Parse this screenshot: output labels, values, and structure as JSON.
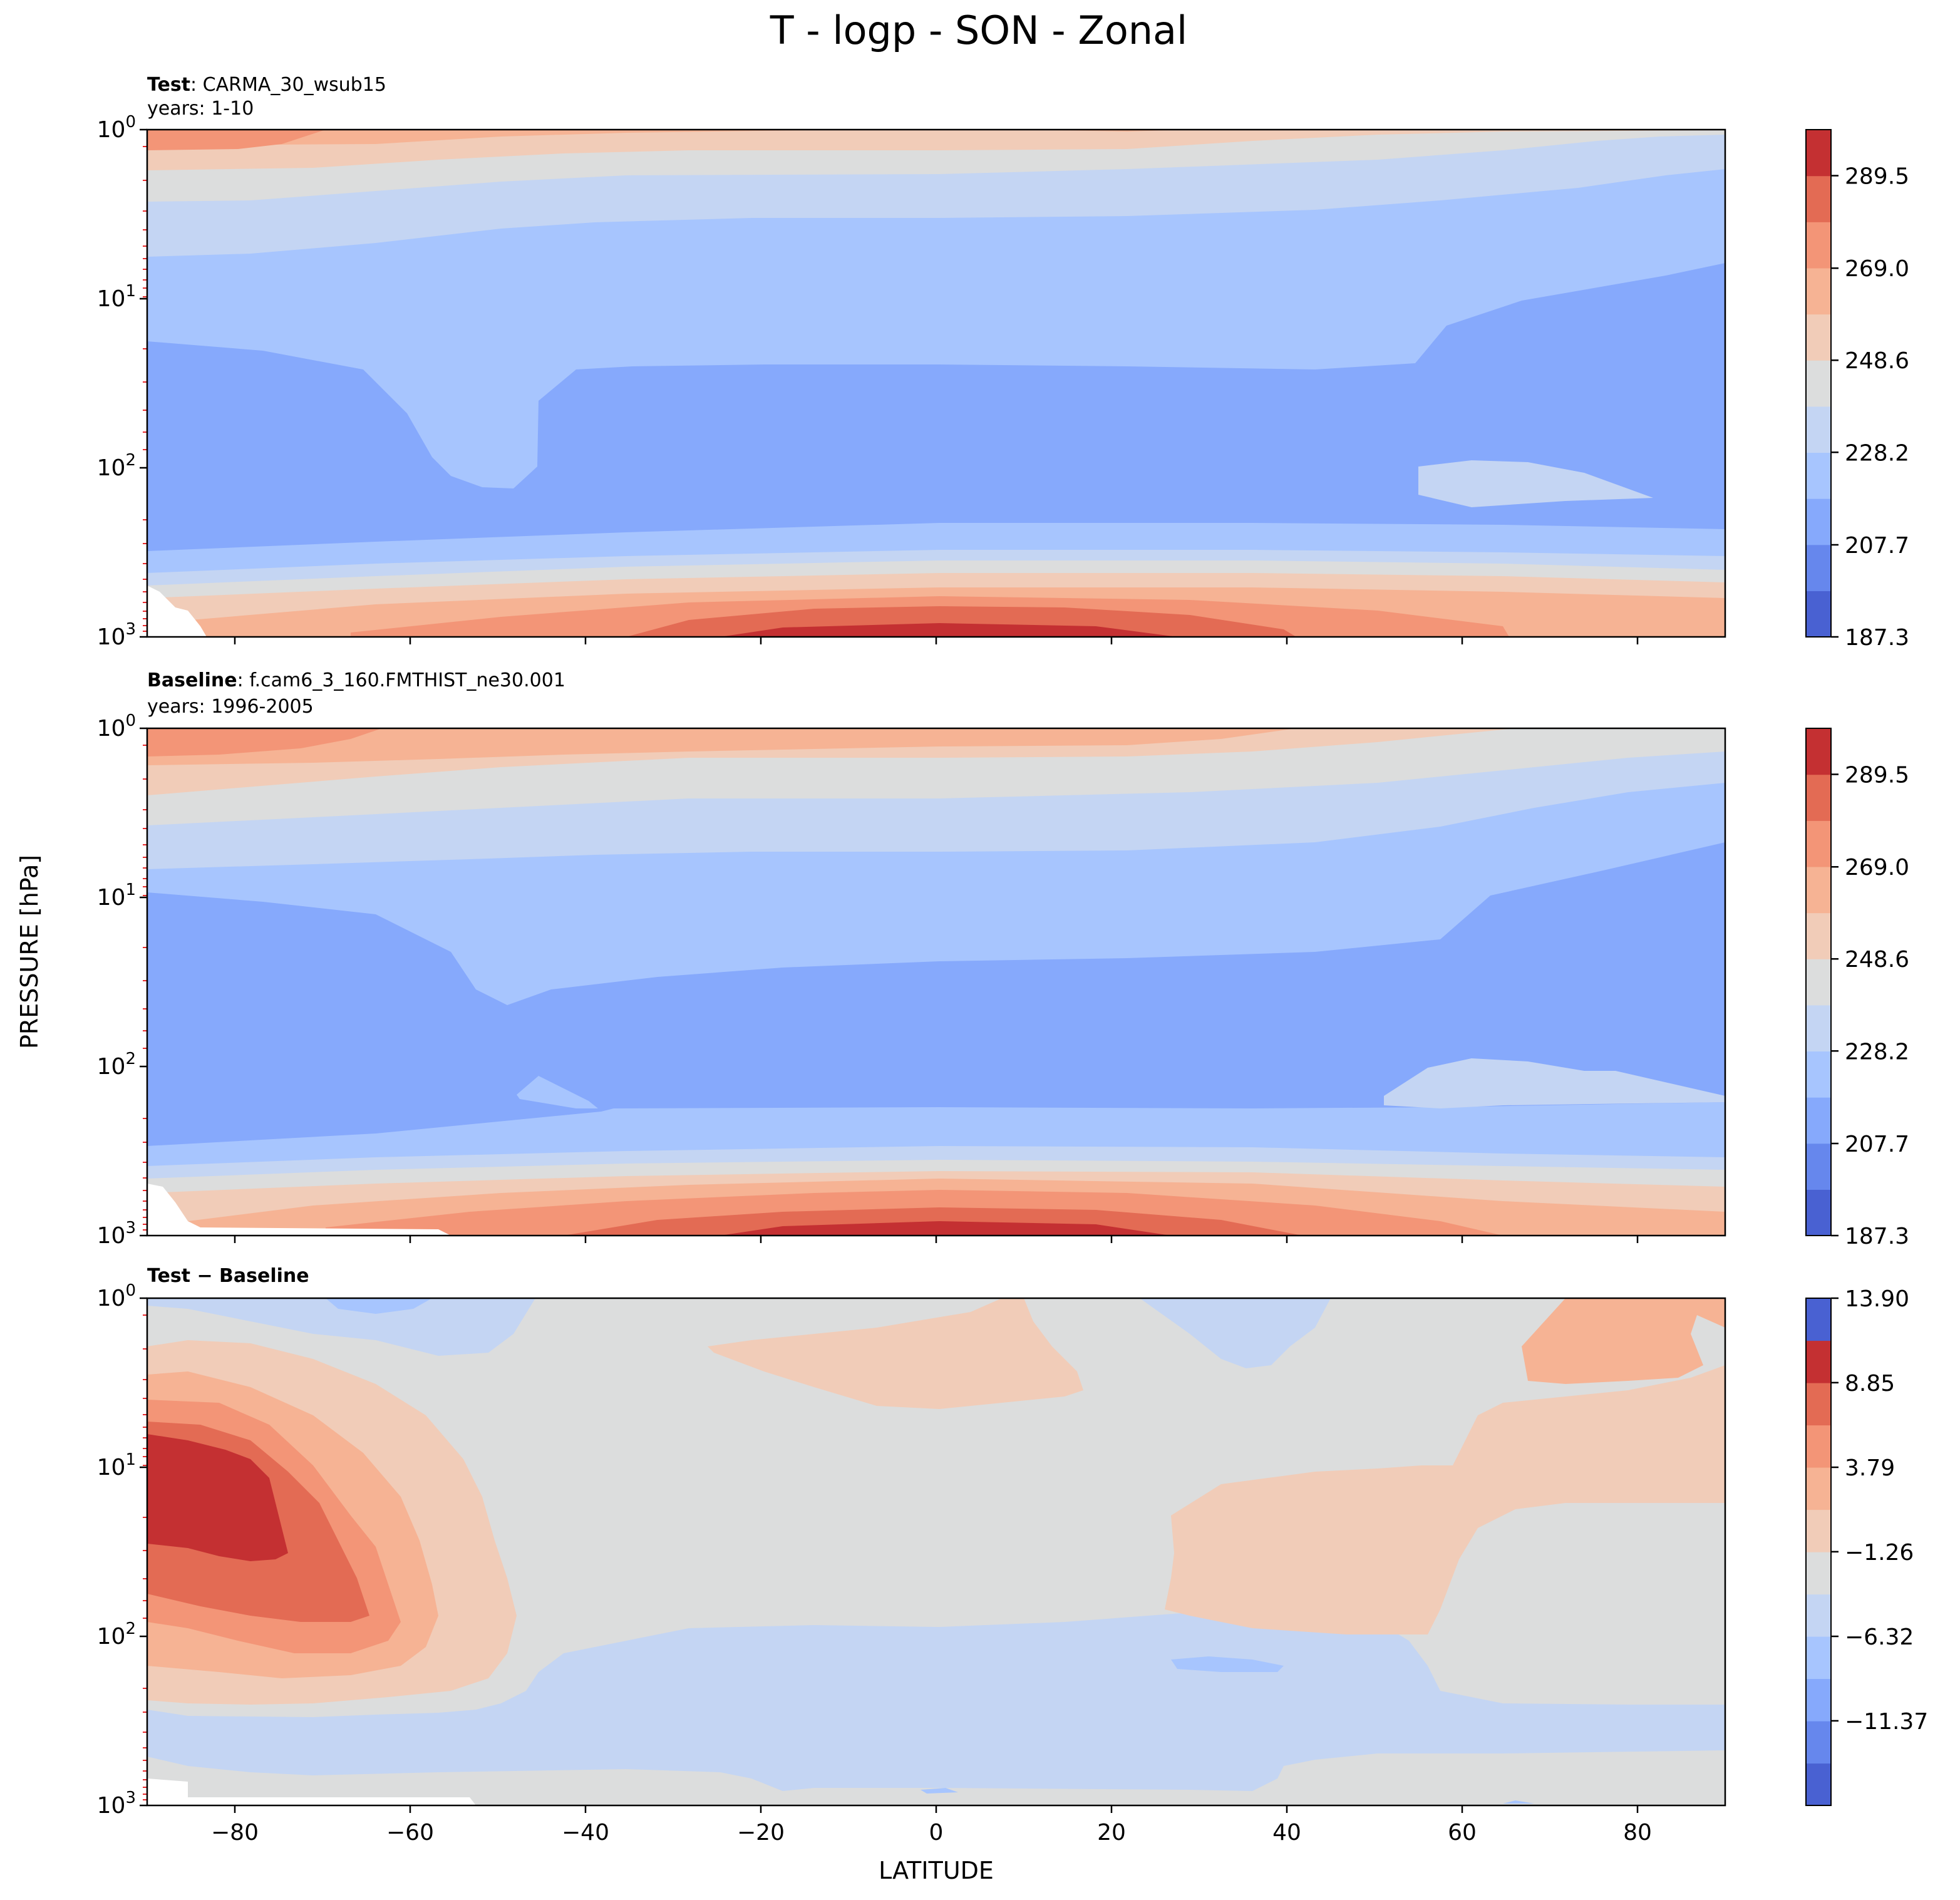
{
  "figure": {
    "title": "T - logp - SON - Zonal",
    "ylabel": "PRESSURE [hPa]",
    "xlabel": "LATITUDE"
  },
  "colors": {
    "cmap": [
      "#4961d2",
      "#6687ed",
      "#86a9fc",
      "#a7c5fe",
      "#c4d5f3",
      "#dcdddd",
      "#f1ccb8",
      "#f6b394",
      "#f39577",
      "#e36b54",
      "#c43032"
    ],
    "xtick_red_marks": "#e8292b",
    "axis_line": "#000000"
  },
  "chart_data": [
    {
      "type": "contourf",
      "label_bold": "Test",
      "label_rest": ": CARMA_30_wsub15",
      "years": "years: 1-10",
      "x": [
        -90,
        90
      ],
      "xticks": [
        "−80",
        "−60",
        "−40",
        "−20",
        "0",
        "20",
        "40",
        "60",
        "80"
      ],
      "xtick_values": [
        -80,
        -60,
        -40,
        -20,
        0,
        20,
        40,
        60,
        80
      ],
      "ylim_hPa": [
        1,
        1000
      ],
      "yscale": "log",
      "yticks": [
        {
          "base": "10",
          "exp": "0",
          "value": 1
        },
        {
          "base": "10",
          "exp": "1",
          "value": 10
        },
        {
          "base": "10",
          "exp": "2",
          "value": 100
        },
        {
          "base": "10",
          "exp": "3",
          "value": 1000
        }
      ],
      "colorbar_levels": [
        187.3,
        197.5,
        207.7,
        218.0,
        228.2,
        238.4,
        248.6,
        258.8,
        269.0,
        279.3,
        289.5,
        299.7
      ],
      "colorbar_ticks": [
        "289.5",
        "269.0",
        "248.6",
        "228.2",
        "207.7",
        "187.3"
      ],
      "colorbar_tick_values": [
        289.5,
        269.0,
        248.6,
        228.2,
        207.7,
        187.3
      ]
    },
    {
      "type": "contourf",
      "label_bold": "Baseline",
      "label_rest": ": f.cam6_3_160.FMTHIST_ne30.001",
      "years": "years: 1996-2005",
      "x": [
        -90,
        90
      ],
      "xticks": [
        "−80",
        "−60",
        "−40",
        "−20",
        "0",
        "20",
        "40",
        "60",
        "80"
      ],
      "xtick_values": [
        -80,
        -60,
        -40,
        -20,
        0,
        20,
        40,
        60,
        80
      ],
      "ylim_hPa": [
        1,
        1000
      ],
      "yscale": "log",
      "yticks": [
        {
          "base": "10",
          "exp": "0",
          "value": 1
        },
        {
          "base": "10",
          "exp": "1",
          "value": 10
        },
        {
          "base": "10",
          "exp": "2",
          "value": 100
        },
        {
          "base": "10",
          "exp": "3",
          "value": 1000
        }
      ],
      "colorbar_levels": [
        187.3,
        197.5,
        207.7,
        218.0,
        228.2,
        238.4,
        248.6,
        258.8,
        269.0,
        279.3,
        289.5,
        299.7
      ],
      "colorbar_ticks": [
        "289.5",
        "269.0",
        "248.6",
        "228.2",
        "207.7",
        "187.3"
      ],
      "colorbar_tick_values": [
        289.5,
        269.0,
        248.6,
        228.2,
        207.7,
        187.3
      ]
    },
    {
      "type": "contourf",
      "label_bold": "Test − Baseline",
      "label_rest": "",
      "years": "",
      "x": [
        -90,
        90
      ],
      "xticks": [
        "−80",
        "−60",
        "−40",
        "−20",
        "0",
        "20",
        "40",
        "60",
        "80"
      ],
      "xtick_values": [
        -80,
        -60,
        -40,
        -20,
        0,
        20,
        40,
        60,
        80
      ],
      "ylim_hPa": [
        1,
        1000
      ],
      "yscale": "log",
      "yticks": [
        {
          "base": "10",
          "exp": "0",
          "value": 1
        },
        {
          "base": "10",
          "exp": "1",
          "value": 10
        },
        {
          "base": "10",
          "exp": "2",
          "value": 100
        },
        {
          "base": "10",
          "exp": "3",
          "value": 1000
        }
      ],
      "colorbar_levels": [
        -16.43,
        -13.9,
        -11.37,
        -8.85,
        -6.32,
        -3.79,
        -1.26,
        1.26,
        3.79,
        6.32,
        8.85,
        11.37,
        13.9
      ],
      "colorbar_ticks": [
        "13.90",
        "8.85",
        "3.79",
        "−1.26",
        "−6.32",
        "−11.37"
      ],
      "colorbar_tick_values": [
        13.9,
        8.85,
        3.79,
        -1.26,
        -6.32,
        -11.37
      ]
    }
  ]
}
